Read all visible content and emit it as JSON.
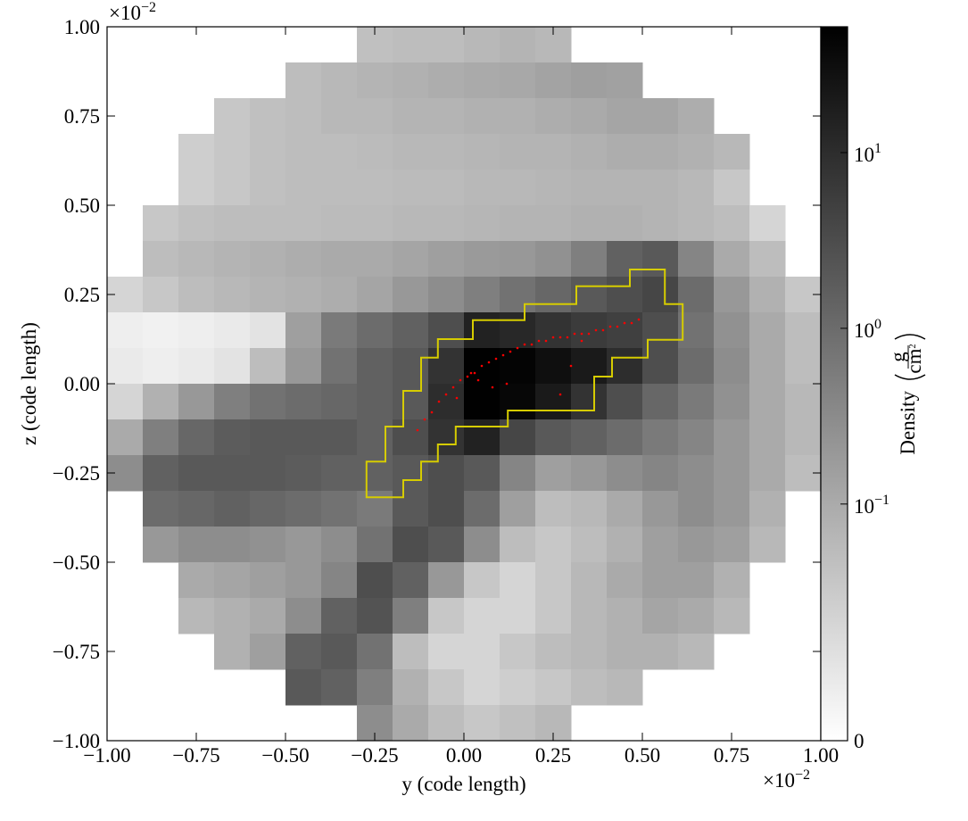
{
  "chart_data": {
    "type": "heatmap",
    "xlabel": "y  (code length)",
    "ylabel": "z  (code length)",
    "x_offset": {
      "base": "×10",
      "exp": "−2"
    },
    "y_offset": {
      "base": "×10",
      "exp": "−2"
    },
    "xlim": [
      -1,
      1
    ],
    "ylim": [
      -1,
      1
    ],
    "xticks": [
      {
        "value": -1,
        "label": "−1.00"
      },
      {
        "value": -0.75,
        "label": "−0.75"
      },
      {
        "value": -0.5,
        "label": "−0.50"
      },
      {
        "value": -0.25,
        "label": "−0.25"
      },
      {
        "value": 0,
        "label": "0.00"
      },
      {
        "value": 0.25,
        "label": "0.25"
      },
      {
        "value": 0.5,
        "label": "0.50"
      },
      {
        "value": 0.75,
        "label": "0.75"
      },
      {
        "value": 1,
        "label": "1.00"
      }
    ],
    "yticks": [
      {
        "value": -1,
        "label": "−1.00"
      },
      {
        "value": -0.75,
        "label": "−0.75"
      },
      {
        "value": -0.5,
        "label": "−0.50"
      },
      {
        "value": -0.25,
        "label": "−0.25"
      },
      {
        "value": 0,
        "label": "0.00"
      },
      {
        "value": 0.25,
        "label": "0.25"
      },
      {
        "value": 0.5,
        "label": "0.50"
      },
      {
        "value": 0.75,
        "label": "0.75"
      },
      {
        "value": 1,
        "label": "1.00"
      }
    ],
    "colorbar_label": "Density",
    "colorbar_unit": {
      "num": "g",
      "den": "cm",
      "den_exp": "2"
    },
    "color_scale": "symlog",
    "linthresh": 0.045,
    "linscale": 1,
    "clim": [
      0,
      52
    ],
    "cticks": [
      0,
      {
        "value": 0.1,
        "label": "10",
        "exp": "−1"
      },
      {
        "value": 1,
        "label": "10",
        "exp": "0"
      },
      {
        "value": 10,
        "label": "10",
        "exp": "1"
      }
    ],
    "density": [
      [
        null,
        null,
        null,
        null,
        null,
        null,
        null,
        0.045,
        0.05,
        0.05,
        0.06,
        0.07,
        0.06,
        null,
        null,
        null,
        null,
        null,
        null,
        null
      ],
      [
        null,
        null,
        null,
        null,
        null,
        0.05,
        0.06,
        0.07,
        0.08,
        0.09,
        0.1,
        0.11,
        0.13,
        0.15,
        0.14,
        null,
        null,
        null,
        null,
        null
      ],
      [
        null,
        null,
        null,
        0.04,
        0.045,
        0.05,
        0.06,
        0.06,
        0.07,
        0.07,
        0.08,
        0.08,
        0.09,
        0.1,
        0.12,
        0.12,
        0.09,
        null,
        null,
        null
      ],
      [
        null,
        null,
        0.035,
        0.04,
        0.045,
        0.05,
        0.05,
        0.055,
        0.06,
        0.06,
        0.065,
        0.07,
        0.07,
        0.08,
        0.09,
        0.09,
        0.08,
        0.06,
        null,
        null
      ],
      [
        null,
        null,
        0.035,
        0.04,
        0.045,
        0.05,
        0.05,
        0.05,
        0.055,
        0.055,
        0.06,
        0.06,
        0.065,
        0.07,
        0.07,
        0.07,
        0.06,
        0.04,
        null,
        null
      ],
      [
        null,
        0.04,
        0.045,
        0.05,
        0.05,
        0.05,
        0.055,
        0.055,
        0.06,
        0.06,
        0.065,
        0.07,
        0.07,
        0.08,
        0.08,
        0.07,
        0.06,
        0.05,
        0.03,
        null
      ],
      [
        null,
        0.05,
        0.06,
        0.07,
        0.08,
        0.09,
        0.1,
        0.1,
        0.12,
        0.15,
        0.18,
        0.2,
        0.25,
        0.5,
        1.5,
        2.0,
        0.4,
        0.1,
        0.05,
        null
      ],
      [
        0.03,
        0.04,
        0.05,
        0.06,
        0.07,
        0.08,
        0.09,
        0.12,
        0.2,
        0.3,
        0.5,
        0.8,
        1.2,
        2.0,
        3.0,
        4.0,
        1.0,
        0.2,
        0.08,
        0.04
      ],
      [
        0.012,
        0.01,
        0.012,
        0.015,
        0.02,
        0.15,
        0.6,
        1.0,
        1.5,
        3,
        15,
        12,
        8,
        6,
        5,
        3,
        0.8,
        0.25,
        0.1,
        0.05
      ],
      [
        0.015,
        0.012,
        0.015,
        0.02,
        0.05,
        0.2,
        0.8,
        1.5,
        2.0,
        8,
        50,
        45,
        30,
        20,
        10,
        3,
        1.0,
        0.3,
        0.1,
        0.05
      ],
      [
        0.03,
        0.08,
        0.2,
        0.5,
        0.8,
        1.0,
        1.2,
        1.5,
        2,
        10,
        50,
        40,
        20,
        8,
        3,
        1.2,
        0.6,
        0.25,
        0.1,
        0.06
      ],
      [
        0.1,
        0.5,
        1.2,
        1.8,
        2.0,
        2.0,
        2.0,
        1.5,
        3,
        8,
        15,
        4,
        2,
        1.5,
        1.0,
        0.6,
        0.4,
        0.2,
        0.1,
        0.06
      ],
      [
        0.3,
        1.5,
        2.0,
        2.0,
        2.0,
        1.8,
        1.5,
        1.5,
        2,
        3,
        2,
        0.4,
        0.15,
        0.2,
        0.3,
        0.4,
        0.3,
        0.2,
        0.1,
        0.05
      ],
      [
        null,
        1.0,
        1.2,
        1.5,
        1.2,
        1.0,
        0.8,
        0.6,
        2.0,
        3.0,
        1.0,
        0.15,
        0.05,
        0.06,
        0.1,
        0.2,
        0.3,
        0.2,
        0.08,
        null
      ],
      [
        null,
        0.2,
        0.3,
        0.3,
        0.25,
        0.2,
        0.3,
        0.8,
        3,
        2,
        0.3,
        0.05,
        0.04,
        0.05,
        0.08,
        0.15,
        0.2,
        0.15,
        0.06,
        null
      ],
      [
        null,
        null,
        0.1,
        0.12,
        0.15,
        0.2,
        0.4,
        3,
        1.5,
        0.2,
        0.04,
        0.03,
        0.04,
        0.06,
        0.1,
        0.15,
        0.15,
        0.08,
        null,
        null
      ],
      [
        null,
        null,
        0.06,
        0.08,
        0.1,
        0.3,
        1.5,
        2.5,
        0.5,
        0.04,
        0.03,
        0.03,
        0.04,
        0.06,
        0.08,
        0.12,
        0.1,
        0.06,
        null,
        null
      ],
      [
        null,
        null,
        null,
        0.08,
        0.15,
        1.5,
        2.0,
        0.8,
        0.05,
        0.03,
        0.03,
        0.04,
        0.05,
        0.06,
        0.08,
        0.08,
        0.06,
        null,
        null,
        null
      ],
      [
        null,
        null,
        null,
        null,
        null,
        2.0,
        1.5,
        0.5,
        0.08,
        0.04,
        0.03,
        0.035,
        0.04,
        0.05,
        0.06,
        null,
        null,
        null,
        null,
        null
      ],
      [
        null,
        null,
        null,
        null,
        null,
        null,
        null,
        0.3,
        0.1,
        0.05,
        0.04,
        0.045,
        0.06,
        null,
        null,
        null,
        null,
        null,
        null,
        null
      ]
    ],
    "contour": {
      "color": "#d6cc00",
      "x": [
        -0.273,
        -0.273,
        -0.17,
        -0.17,
        -0.12,
        -0.12,
        -0.073,
        -0.073,
        -0.023,
        -0.023,
        0.123,
        0.123,
        0.365,
        0.365,
        0.415,
        0.415,
        0.515,
        0.515,
        0.613,
        0.613,
        0.563,
        0.563,
        0.465,
        0.465,
        0.315,
        0.315,
        0.17,
        0.17,
        0.025,
        0.025,
        -0.073,
        -0.073,
        -0.12,
        -0.12,
        -0.17,
        -0.17,
        -0.22,
        -0.22
      ],
      "y": [
        -0.218,
        -0.318,
        -0.318,
        -0.27,
        -0.27,
        -0.218,
        -0.218,
        -0.17,
        -0.17,
        -0.12,
        -0.12,
        -0.075,
        -0.075,
        0.02,
        0.02,
        0.073,
        0.073,
        0.123,
        0.123,
        0.223,
        0.223,
        0.32,
        0.32,
        0.273,
        0.273,
        0.223,
        0.223,
        0.178,
        0.178,
        0.125,
        0.125,
        0.073,
        0.073,
        -0.02,
        -0.02,
        -0.12,
        -0.12,
        -0.218
      ]
    },
    "particles": {
      "color": "#ff0000",
      "x": [
        -0.13,
        -0.11,
        -0.09,
        -0.07,
        -0.05,
        -0.03,
        -0.01,
        0.01,
        0.02,
        0.03,
        0.05,
        0.07,
        0.09,
        0.11,
        0.13,
        0.15,
        0.17,
        0.19,
        0.21,
        0.23,
        0.25,
        0.27,
        0.29,
        0.31,
        0.33,
        0.35,
        0.37,
        0.39,
        0.41,
        0.43,
        0.45,
        0.47,
        0.49,
        -0.02,
        0.04,
        0.08,
        0.12,
        0.27,
        0.3,
        0.33
      ],
      "y": [
        -0.13,
        -0.1,
        -0.08,
        -0.05,
        -0.03,
        -0.01,
        0.01,
        0.02,
        0.03,
        0.03,
        0.05,
        0.06,
        0.07,
        0.08,
        0.09,
        0.1,
        0.11,
        0.11,
        0.12,
        0.12,
        0.13,
        0.13,
        0.13,
        0.14,
        0.14,
        0.14,
        0.15,
        0.15,
        0.16,
        0.16,
        0.17,
        0.17,
        0.18,
        -0.04,
        0.01,
        -0.01,
        0.0,
        -0.03,
        0.05,
        0.12
      ]
    }
  }
}
